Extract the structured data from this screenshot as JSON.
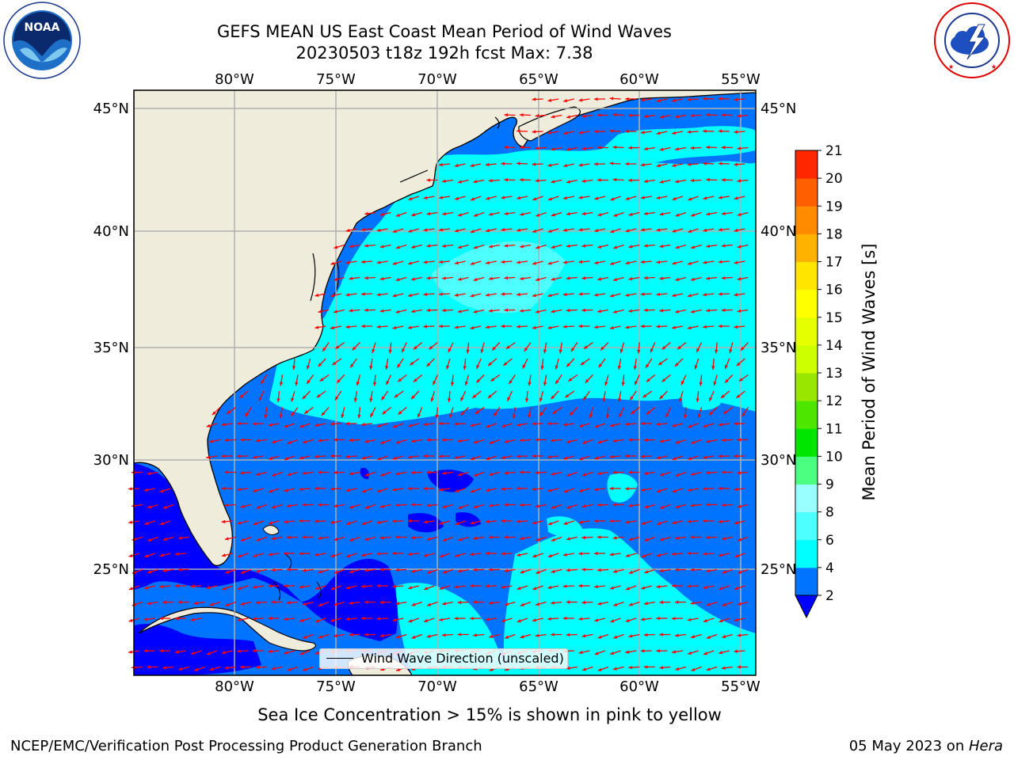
{
  "header": {
    "title_line1": "GEFS MEAN US East Coast Mean Period of Wind Waves",
    "title_line2": "20230503 t18z 192h fcst   Max: 7.38"
  },
  "logos": {
    "left": {
      "name": "noaa-logo",
      "text": "NOAA",
      "ring_text": "NATIONAL OCEANIC AND ATMOSPHERIC ADMINISTRATION · U.S. DEPARTMENT OF COMMERCE"
    },
    "right": {
      "name": "nws-logo",
      "ring_text": "NATIONAL WEATHER SERVICE"
    }
  },
  "map": {
    "lon_range": [
      -85,
      -54
    ],
    "lat_range": [
      20.5,
      46
    ],
    "top_lon_labels": [
      "80°W",
      "75°W",
      "70°W",
      "65°W",
      "60°W",
      "55°W"
    ],
    "bottom_lon_labels": [
      "80°W",
      "75°W",
      "70°W",
      "65°W",
      "60°W",
      "55°W"
    ],
    "left_lat_labels": [
      "45°N",
      "40°N",
      "35°N",
      "30°N",
      "25°N"
    ],
    "right_lat_labels": [
      "45°N",
      "40°N",
      "35°N",
      "30°N",
      "25°N"
    ],
    "gridline_lons": [
      -80,
      -75,
      -70,
      -65,
      -60,
      -55
    ],
    "gridline_lats": [
      45,
      40,
      35,
      30,
      25
    ],
    "land_color": "#efecdc",
    "arrow_color": "#ff0000",
    "legend_label": "Wind Wave Direction (unscaled)"
  },
  "colorbar": {
    "title": "Mean Period of Wind Waves [s]",
    "levels": [
      "2",
      "4",
      "6",
      "8",
      "9",
      "10",
      "11",
      "12",
      "13",
      "14",
      "15",
      "16",
      "17",
      "18",
      "19",
      "20",
      "21"
    ],
    "colors": [
      "#0073ff",
      "#00ffff",
      "#4dffff",
      "#99ffff",
      "#4dff80",
      "#00e600",
      "#4de600",
      "#99e600",
      "#ccff00",
      "#e6ff00",
      "#ffff00",
      "#ffe600",
      "#ffb300",
      "#ff8c00",
      "#ff5f00",
      "#ff2600"
    ],
    "under_color": "#0000ff",
    "extend": "min"
  },
  "notes": {
    "ice": "Sea Ice Concentration > 15% is shown in pink to yellow"
  },
  "footer": {
    "left": "NCEP/EMC/Verification Post Processing Product Generation Branch",
    "right_date": "05 May 2023 on ",
    "right_host": "Hera"
  }
}
